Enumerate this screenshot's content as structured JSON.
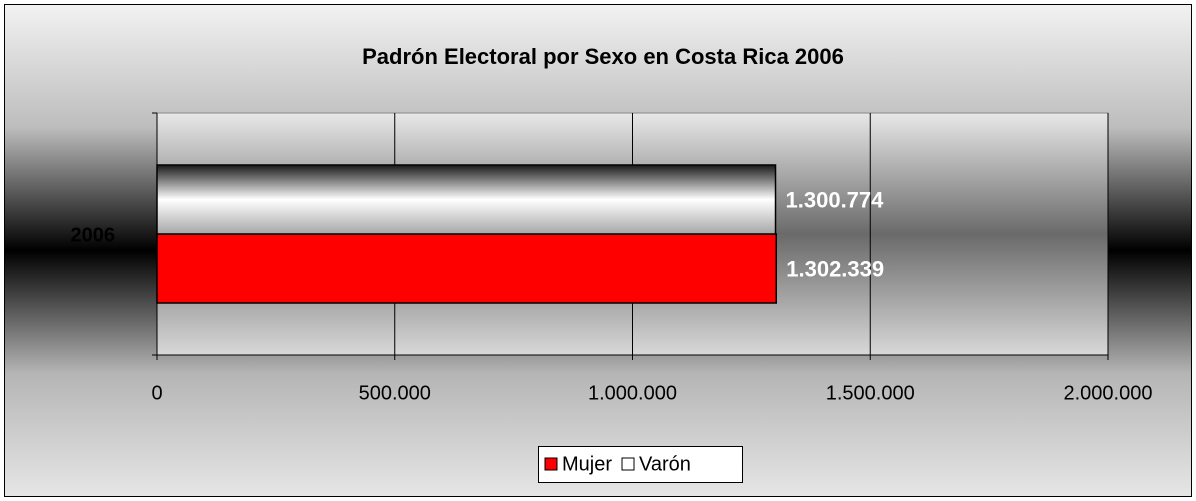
{
  "chart_data": {
    "type": "bar",
    "orientation": "horizontal",
    "title": "Padrón Electoral por Sexo en Costa Rica 2006",
    "categories": [
      "2006"
    ],
    "series": [
      {
        "name": "Mujer",
        "color": "#ff0000",
        "values": [
          1302339
        ],
        "value_labels": [
          "1.302.339"
        ]
      },
      {
        "name": "Varón",
        "color": "#ffffff",
        "values": [
          1300774
        ],
        "value_labels": [
          "1.300.774"
        ]
      }
    ],
    "xlim": [
      0,
      2000000
    ],
    "xticks": [
      0,
      {
        "value": 500000,
        "label": "500.000"
      },
      {
        "value": 1000000,
        "label": "1.000.000"
      },
      {
        "value": 1500000,
        "label": "1.500.000"
      },
      {
        "value": 2000000,
        "label": "2.000.000"
      }
    ],
    "grid": true,
    "legend": "bottom"
  }
}
